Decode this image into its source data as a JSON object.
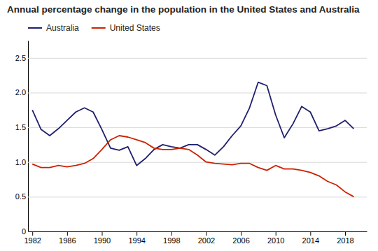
{
  "chart_data": {
    "type": "line",
    "title": "Annual percentage change in the population in the United States and Australia",
    "x": [
      1982,
      1983,
      1984,
      1985,
      1986,
      1987,
      1988,
      1989,
      1990,
      1991,
      1992,
      1993,
      1994,
      1995,
      1996,
      1997,
      1998,
      1999,
      2000,
      2001,
      2002,
      2003,
      2004,
      2005,
      2006,
      2007,
      2008,
      2009,
      2010,
      2011,
      2012,
      2013,
      2014,
      2015,
      2016,
      2017,
      2018,
      2019
    ],
    "series": [
      {
        "name": "Australia",
        "color": "#1f1f6e",
        "values": [
          1.75,
          1.47,
          1.38,
          1.48,
          1.6,
          1.72,
          1.78,
          1.72,
          1.47,
          1.2,
          1.17,
          1.22,
          0.95,
          1.05,
          1.18,
          1.25,
          1.22,
          1.2,
          1.25,
          1.25,
          1.18,
          1.1,
          1.22,
          1.38,
          1.52,
          1.78,
          2.15,
          2.1,
          1.68,
          1.35,
          1.55,
          1.8,
          1.72,
          1.45,
          1.48,
          1.52,
          1.6,
          1.48
        ]
      },
      {
        "name": "United States",
        "color": "#cc2200",
        "values": [
          0.97,
          0.92,
          0.92,
          0.95,
          0.93,
          0.95,
          0.98,
          1.05,
          1.18,
          1.32,
          1.38,
          1.36,
          1.32,
          1.28,
          1.2,
          1.18,
          1.18,
          1.2,
          1.18,
          1.1,
          1.0,
          0.98,
          0.97,
          0.96,
          0.98,
          0.98,
          0.92,
          0.88,
          0.95,
          0.9,
          0.9,
          0.88,
          0.85,
          0.8,
          0.72,
          0.67,
          0.57,
          0.5
        ]
      }
    ],
    "xlim": [
      1981.5,
      2020.5
    ],
    "ylim": [
      0,
      2.75
    ],
    "xticks": [
      1982,
      1986,
      1990,
      1994,
      1998,
      2002,
      2006,
      2010,
      2014,
      2018
    ],
    "yticks": [
      0,
      0.5,
      {
        "value": 1.0,
        "label": "1.0"
      },
      1.5,
      {
        "value": 2.0,
        "label": "2.0"
      },
      2.5
    ],
    "grid": true,
    "legend": "upper left"
  }
}
